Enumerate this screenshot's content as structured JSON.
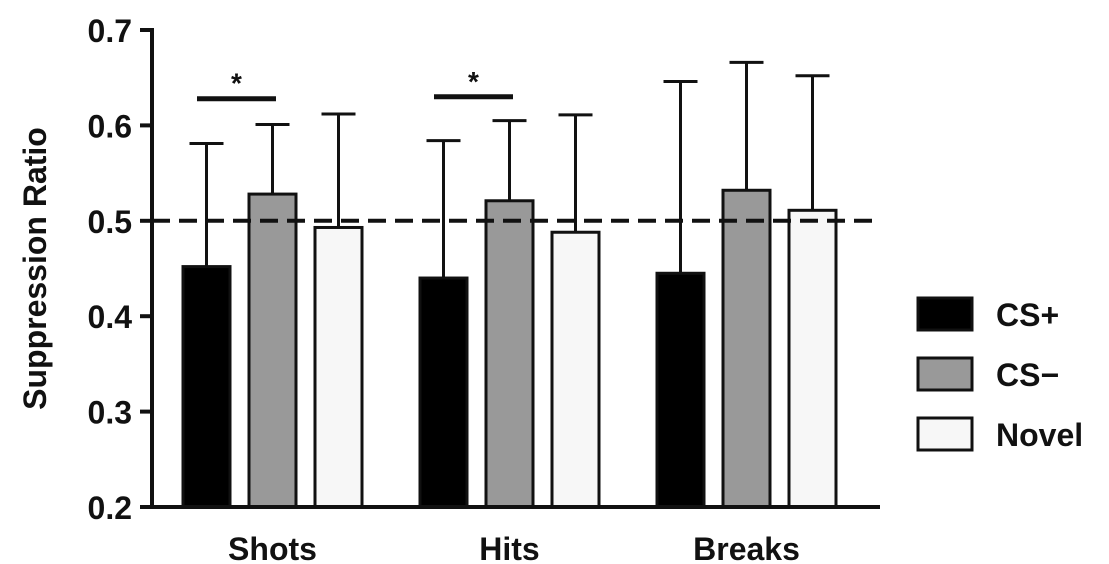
{
  "chart_data": {
    "type": "bar",
    "title": "",
    "xlabel": "",
    "ylabel": "Suppression Ratio",
    "ylim": [
      0.2,
      0.7
    ],
    "yticks": [
      0.2,
      0.3,
      0.4,
      0.5,
      0.6,
      0.7
    ],
    "ytick_labels": [
      "0.2",
      "0.3",
      "0.4",
      "0.5",
      "0.6",
      "0.7"
    ],
    "categories": [
      "Shots",
      "Hits",
      "Breaks"
    ],
    "series": [
      {
        "name": "CS+",
        "color": "#000000",
        "values": [
          0.452,
          0.44,
          0.445
        ],
        "error_upper": [
          0.581,
          0.584,
          0.646
        ]
      },
      {
        "name": "CS−",
        "color": "#999999",
        "values": [
          0.528,
          0.521,
          0.532
        ],
        "error_upper": [
          0.601,
          0.605,
          0.666
        ]
      },
      {
        "name": "Novel",
        "color": "#f7f7f7",
        "values": [
          0.493,
          0.488,
          0.511
        ],
        "error_upper": [
          0.612,
          0.611,
          0.652
        ]
      }
    ],
    "reference_line": {
      "y": 0.5,
      "style": "dashed"
    },
    "significance": [
      {
        "category": "Shots",
        "between": [
          "CS+",
          "CS−"
        ],
        "label": "*",
        "y": 0.628
      },
      {
        "category": "Hits",
        "between": [
          "CS+",
          "CS−"
        ],
        "label": "*",
        "y": 0.63
      }
    ],
    "legend": {
      "position": "right",
      "entries": [
        "CS+",
        "CS−",
        "Novel"
      ]
    },
    "grid": false
  }
}
